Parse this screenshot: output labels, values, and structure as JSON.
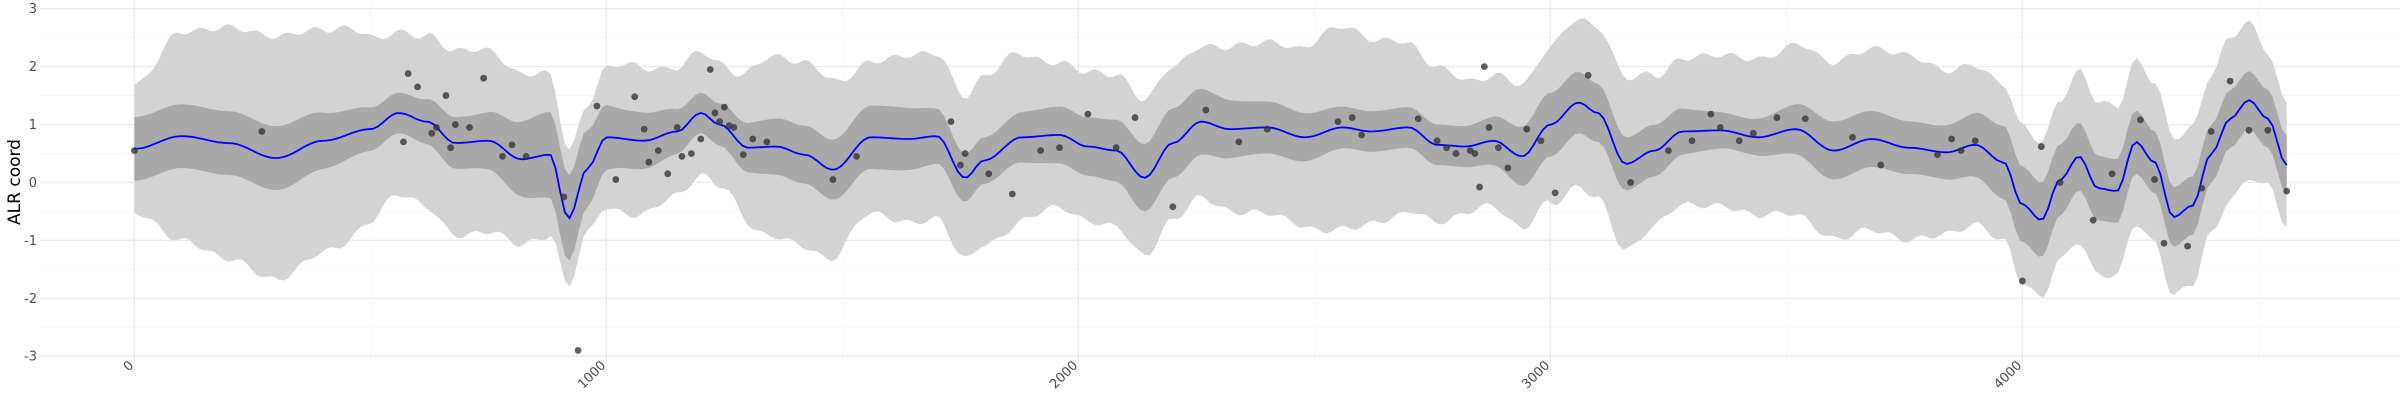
{
  "chart_data": {
    "type": "line",
    "title": "",
    "xlabel": "",
    "ylabel": "ALR coord",
    "xlim": [
      -200,
      4800
    ],
    "ylim": [
      -3.1,
      3.15
    ],
    "x_ticks": [
      "0",
      "1000",
      "2000",
      "3000",
      "4000"
    ],
    "x_tick_values": [
      0,
      1000,
      2000,
      3000,
      4000
    ],
    "y_ticks": [
      "-3",
      "-2",
      "-1",
      "0",
      "1",
      "2",
      "3"
    ],
    "y_tick_values": [
      -3,
      -2,
      -1,
      0,
      1,
      2,
      3
    ],
    "grid": true,
    "colors": {
      "mean_line": "#0000ff",
      "inner_band": "#a9a9a9",
      "outer_band": "#d3d3d3",
      "points": "#333333"
    },
    "series": [
      {
        "kind": "mean",
        "x": [
          0,
          100,
          200,
          300,
          400,
          500,
          560,
          620,
          680,
          750,
          820,
          880,
          920,
          960,
          1000,
          1080,
          1150,
          1200,
          1240,
          1300,
          1360,
          1420,
          1480,
          1560,
          1640,
          1700,
          1760,
          1800,
          1880,
          1960,
          2020,
          2080,
          2140,
          2200,
          2260,
          2320,
          2400,
          2480,
          2560,
          2620,
          2700,
          2760,
          2820,
          2880,
          2940,
          3000,
          3060,
          3100,
          3160,
          3220,
          3280,
          3360,
          3440,
          3520,
          3600,
          3680,
          3760,
          3840,
          3900,
          3960,
          4000,
          4040,
          4080,
          4120,
          4160,
          4200,
          4240,
          4280,
          4320,
          4360,
          4400,
          4440,
          4480,
          4520,
          4560
        ],
        "y": [
          0.58,
          0.8,
          0.68,
          0.42,
          0.72,
          0.92,
          1.2,
          1.05,
          0.68,
          0.72,
          0.4,
          0.48,
          -0.62,
          0.25,
          0.78,
          0.72,
          0.88,
          1.2,
          1.0,
          0.6,
          0.62,
          0.48,
          0.22,
          0.78,
          0.75,
          0.8,
          0.08,
          0.38,
          0.78,
          0.82,
          0.62,
          0.55,
          0.08,
          0.68,
          1.05,
          0.92,
          0.95,
          0.78,
          0.95,
          0.88,
          0.95,
          0.65,
          0.62,
          0.72,
          0.45,
          1.0,
          1.38,
          1.2,
          0.32,
          0.55,
          0.88,
          0.9,
          0.78,
          0.92,
          0.55,
          0.75,
          0.6,
          0.52,
          0.65,
          0.35,
          -0.38,
          -0.65,
          0.05,
          0.45,
          -0.1,
          -0.15,
          0.7,
          0.35,
          -0.6,
          -0.4,
          0.5,
          1.1,
          1.42,
          1.1,
          0.3
        ]
      },
      {
        "kind": "inner_band_halfwidth",
        "x": [
          0,
          300,
          560,
          700,
          900,
          1050,
          1200,
          1400,
          1600,
          1800,
          2000,
          2200,
          2400,
          2600,
          2800,
          3000,
          3200,
          3400,
          3600,
          3800,
          4000,
          4200,
          4400,
          4560
        ],
        "y": [
          0.55,
          0.55,
          0.35,
          0.45,
          0.75,
          0.5,
          0.35,
          0.5,
          0.55,
          0.4,
          0.5,
          0.6,
          0.45,
          0.35,
          0.35,
          0.55,
          0.45,
          0.3,
          0.5,
          0.45,
          0.65,
          0.55,
          0.5,
          0.5
        ]
      },
      {
        "kind": "outer_band_halfwidth",
        "x": [
          0,
          100,
          200,
          300,
          420,
          560,
          700,
          850,
          950,
          1050,
          1150,
          1250,
          1350,
          1450,
          1550,
          1650,
          1750,
          1850,
          1950,
          2050,
          2150,
          2250,
          2350,
          2450,
          2550,
          2650,
          2750,
          2850,
          2950,
          3050,
          3150,
          3250,
          3350,
          3450,
          3550,
          3650,
          3750,
          3850,
          3950,
          4050,
          4150,
          4250,
          4350,
          4450,
          4560
        ],
        "y": [
          1.1,
          1.8,
          2.0,
          2.1,
          1.9,
          1.4,
          1.6,
          1.45,
          1.1,
          1.3,
          1.1,
          1.05,
          1.55,
          1.6,
          1.3,
          1.45,
          1.4,
          1.5,
          1.25,
          1.3,
          1.35,
          1.3,
          1.45,
          1.5,
          1.75,
          1.55,
          1.35,
          1.1,
          1.25,
          1.45,
          1.5,
          1.25,
          1.3,
          1.35,
          1.5,
          1.55,
          1.6,
          1.4,
          1.35,
          1.35,
          1.5,
          1.4,
          1.35,
          1.4,
          1.05
        ]
      }
    ],
    "points": {
      "x": [
        0,
        270,
        570,
        580,
        600,
        630,
        640,
        660,
        670,
        680,
        710,
        740,
        780,
        800,
        830,
        910,
        940,
        980,
        1020,
        1060,
        1080,
        1090,
        1110,
        1130,
        1150,
        1160,
        1180,
        1200,
        1220,
        1230,
        1240,
        1250,
        1260,
        1270,
        1290,
        1310,
        1340,
        1480,
        1530,
        1730,
        1750,
        1760,
        1810,
        1860,
        1920,
        1960,
        2020,
        2080,
        2120,
        2200,
        2270,
        2340,
        2400,
        2550,
        2580,
        2600,
        2720,
        2760,
        2780,
        2800,
        2830,
        2840,
        2850,
        2860,
        2870,
        2890,
        2910,
        2950,
        2980,
        3010,
        3080,
        3170,
        3250,
        3300,
        3340,
        3360,
        3400,
        3430,
        3480,
        3540,
        3640,
        3700,
        3820,
        3850,
        3870,
        3900,
        4000,
        4040,
        4080,
        4150,
        4190,
        4250,
        4280,
        4300,
        4350,
        4380,
        4400,
        4440,
        4480,
        4520,
        4560
      ],
      "y": [
        0.55,
        0.88,
        0.7,
        1.88,
        1.65,
        0.85,
        0.95,
        1.5,
        0.6,
        1.0,
        0.95,
        1.8,
        0.45,
        0.65,
        0.45,
        -0.25,
        -2.9,
        1.32,
        0.05,
        1.48,
        0.92,
        0.35,
        0.55,
        0.15,
        0.95,
        0.45,
        0.5,
        0.75,
        1.95,
        1.2,
        1.05,
        1.3,
        0.98,
        0.95,
        0.48,
        0.75,
        0.7,
        0.05,
        0.45,
        1.05,
        0.3,
        0.5,
        0.15,
        -0.2,
        0.55,
        0.6,
        1.18,
        0.6,
        1.12,
        -0.42,
        1.25,
        0.7,
        0.92,
        1.05,
        1.12,
        0.82,
        1.1,
        0.72,
        0.6,
        0.5,
        0.55,
        0.5,
        -0.08,
        2.0,
        0.95,
        0.6,
        0.25,
        0.92,
        0.72,
        -0.18,
        1.85,
        0.0,
        0.55,
        0.72,
        1.18,
        0.95,
        0.72,
        0.85,
        1.12,
        1.1,
        0.78,
        0.3,
        0.48,
        0.75,
        0.55,
        0.72,
        -1.7,
        0.62,
        0.0,
        -0.65,
        0.15,
        1.08,
        0.05,
        -1.05,
        -1.1,
        -0.1,
        0.88,
        1.75,
        0.9,
        0.9,
        -0.15
      ]
    }
  }
}
